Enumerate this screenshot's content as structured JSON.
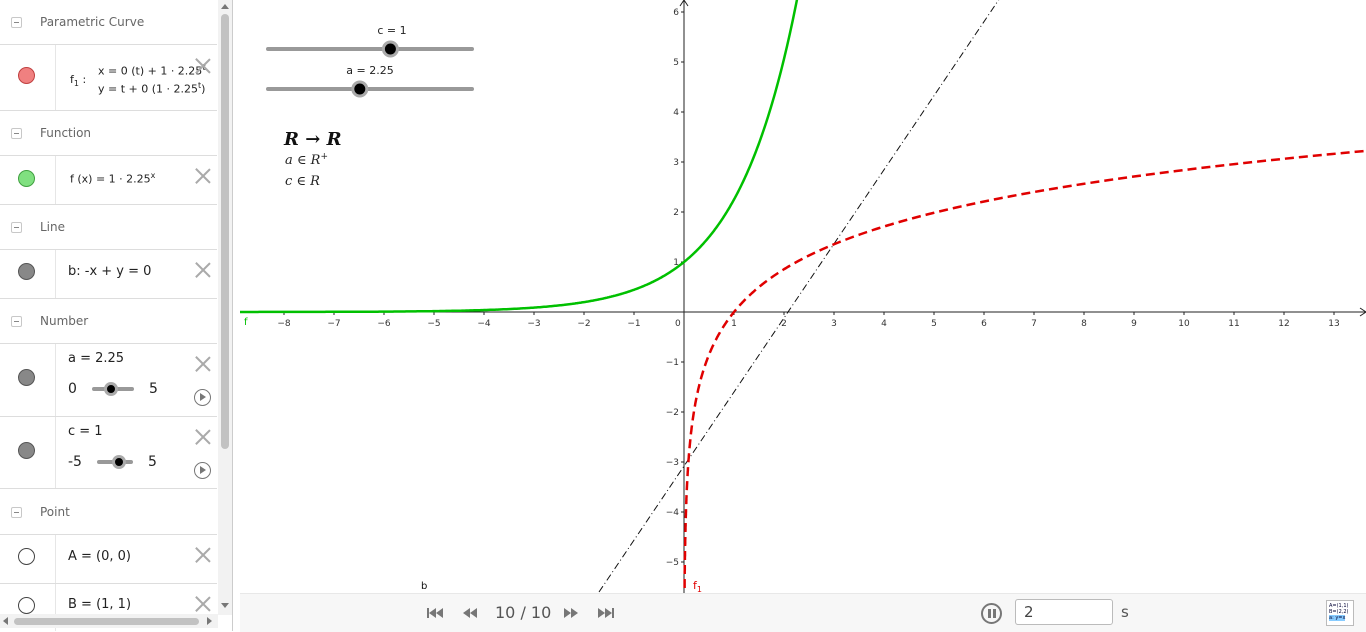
{
  "algebra": {
    "categories": {
      "parametric": "Parametric Curve",
      "function": "Function",
      "line": "Line",
      "number": "Number",
      "point": "Point"
    },
    "curve_f1": {
      "name": "f",
      "sub": "1",
      "colon": ":",
      "x_expr": "x = 0  (t) + 1 · 2.25",
      "x_exp": "t",
      "y_expr": "y = t + 0  (1 · 2.25",
      "y_exp": "t",
      "y_close": ")",
      "color": "#f08080"
    },
    "function_f": {
      "expr": "f (x)  =  1 · 2.25",
      "exp": "x",
      "color": "#80e080"
    },
    "line_b": {
      "expr": "b: -x + y = 0",
      "color": "#888888"
    },
    "number_a": {
      "label": "a = 2.25",
      "min": "0",
      "max": "5",
      "value": 2.25,
      "lo": 0,
      "hi": 5
    },
    "number_c": {
      "label": "c = 1",
      "min": "-5",
      "max": "5",
      "value": 1,
      "lo": -5,
      "hi": 5
    },
    "point_A": {
      "label": "A = (0, 0)"
    },
    "point_B": {
      "label": "B = (1, 1)"
    }
  },
  "graphics": {
    "slider_c": {
      "label": "c = 1",
      "value": 1,
      "lo": -5,
      "hi": 5
    },
    "slider_a": {
      "label": "a = 2.25",
      "value": 2.25,
      "lo": 0,
      "hi": 5
    },
    "math_title": "R → R",
    "math_a": "a ∈ R",
    "math_a_sup": "+",
    "math_c": "c ∈ R",
    "label_f": "f",
    "label_f1": "f",
    "label_f1_sub": "1",
    "label_b": "b",
    "green": "#00c000",
    "red": "#e00000"
  },
  "chart_data": {
    "type": "line",
    "xlim": [
      -8.7,
      13.8
    ],
    "ylim": [
      -5.6,
      6.2
    ],
    "x_ticks": [
      -8,
      -7,
      -6,
      -5,
      -4,
      -3,
      -2,
      -1,
      0,
      1,
      2,
      3,
      4,
      5,
      6,
      7,
      8,
      9,
      10,
      11,
      12,
      13
    ],
    "y_ticks": [
      -5,
      -4,
      -3,
      -2,
      -1,
      1,
      2,
      3,
      4,
      5,
      6
    ],
    "series": [
      {
        "name": "f",
        "formula": "1 · 2.25^x",
        "style": "solid",
        "color": "#00c000"
      },
      {
        "name": "f1",
        "formula": "inverse of f (log base 2.25)",
        "style": "dashed",
        "color": "#e00000"
      },
      {
        "name": "b",
        "formula": "y = x",
        "style": "dash-dot",
        "color": "#000000"
      }
    ]
  },
  "playbar": {
    "counter": "10 / 10",
    "speed": "2",
    "unit": "s"
  }
}
